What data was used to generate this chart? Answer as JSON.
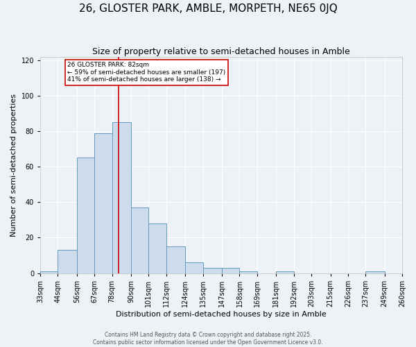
{
  "title": "26, GLOSTER PARK, AMBLE, MORPETH, NE65 0JQ",
  "subtitle": "Size of property relative to semi-detached houses in Amble",
  "xlabel": "Distribution of semi-detached houses by size in Amble",
  "ylabel": "Number of semi-detached properties",
  "bin_edges": [
    33,
    44,
    56,
    67,
    78,
    90,
    101,
    112,
    124,
    135,
    147,
    158,
    169,
    181,
    192,
    203,
    215,
    226,
    237,
    249,
    260
  ],
  "bar_heights": [
    1,
    13,
    65,
    79,
    85,
    37,
    28,
    15,
    6,
    3,
    3,
    1,
    0,
    1,
    0,
    0,
    0,
    0,
    1,
    0
  ],
  "bar_color": "#ccdcec",
  "bar_edge_color": "#6699bb",
  "property_size": 82,
  "vline_color": "#cc0000",
  "annotation_text": "26 GLOSTER PARK: 82sqm\n← 59% of semi-detached houses are smaller (197)\n41% of semi-detached houses are larger (138) →",
  "annotation_box_facecolor": "#ffffff",
  "annotation_box_edgecolor": "#cc0000",
  "ylim": [
    0,
    122
  ],
  "yticks": [
    0,
    20,
    40,
    60,
    80,
    100,
    120
  ],
  "tick_labels": [
    "33sqm",
    "44sqm",
    "56sqm",
    "67sqm",
    "78sqm",
    "90sqm",
    "101sqm",
    "112sqm",
    "124sqm",
    "135sqm",
    "147sqm",
    "158sqm",
    "169sqm",
    "181sqm",
    "192sqm",
    "203sqm",
    "215sqm",
    "226sqm",
    "237sqm",
    "249sqm",
    "260sqm"
  ],
  "footer_line1": "Contains HM Land Registry data © Crown copyright and database right 2025.",
  "footer_line2": "Contains public sector information licensed under the Open Government Licence v3.0.",
  "bg_color": "#edf2f7",
  "grid_color": "#ffffff",
  "title_fontsize": 11,
  "subtitle_fontsize": 9,
  "axis_label_fontsize": 8,
  "tick_fontsize": 7,
  "footer_fontsize": 5.5
}
